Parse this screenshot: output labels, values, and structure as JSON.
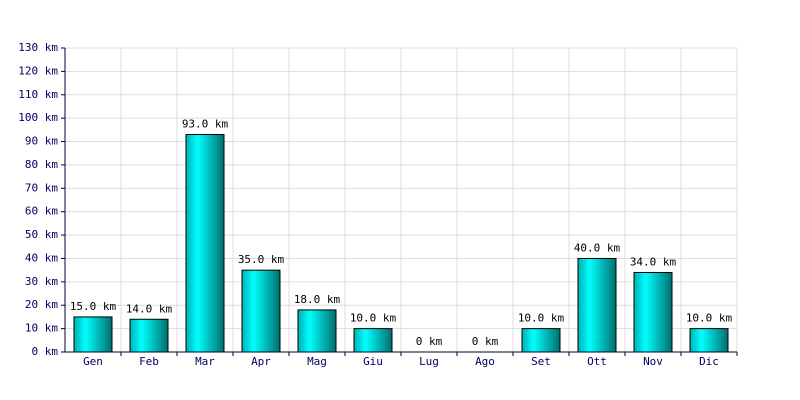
{
  "chart_data": {
    "type": "bar",
    "categories": [
      "Gen",
      "Feb",
      "Mar",
      "Apr",
      "Mag",
      "Giu",
      "Lug",
      "Ago",
      "Set",
      "Ott",
      "Nov",
      "Dic"
    ],
    "values": [
      15,
      14,
      93,
      35,
      18,
      10,
      0,
      0,
      10,
      40,
      34,
      10
    ],
    "value_labels": [
      "15.0 km",
      "14.0 km",
      "93.0 km",
      "35.0 km",
      "18.0 km",
      "10.0 km",
      "0 km",
      "0 km",
      "10.0 km",
      "40.0 km",
      "34.0 km",
      "10.0 km"
    ],
    "color": "#00e0e0",
    "ylim": [
      0,
      130
    ],
    "yticks": [
      {
        "value": 0,
        "label": "0 km"
      },
      {
        "value": 10,
        "label": "10 km"
      },
      {
        "value": 20,
        "label": "20 km"
      },
      {
        "value": 30,
        "label": "30 km"
      },
      {
        "value": 40,
        "label": "40 km"
      },
      {
        "value": 50,
        "label": "50 km"
      },
      {
        "value": 60,
        "label": "60 km"
      },
      {
        "value": 70,
        "label": "70 km"
      },
      {
        "value": 80,
        "label": "80 km"
      },
      {
        "value": 90,
        "label": "90 km"
      },
      {
        "value": 100,
        "label": "100 km"
      },
      {
        "value": 110,
        "label": "110 km"
      },
      {
        "value": 120,
        "label": "120 km"
      },
      {
        "value": 130,
        "label": "130 km"
      }
    ],
    "grid": true
  }
}
